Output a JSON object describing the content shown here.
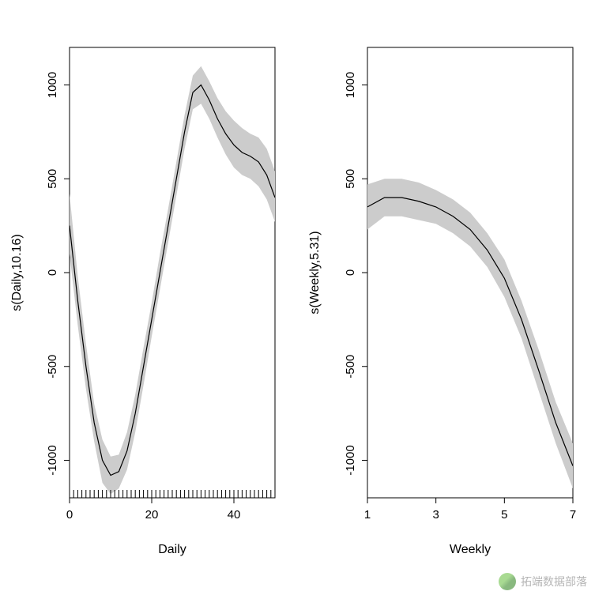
{
  "figure": {
    "background_color": "#ffffff",
    "ci_color": "#cccccc",
    "line_color": "#000000",
    "axis_color": "#000000",
    "font_family": "Arial",
    "panels": [
      {
        "id": "daily",
        "xlabel": "Daily",
        "ylabel": "s(Daily,10.16)",
        "xlim": [
          0,
          50
        ],
        "ylim": [
          -1200,
          1200
        ],
        "xticks": [
          0,
          20,
          40
        ],
        "yticks": [
          -1000,
          -500,
          0,
          500,
          1000
        ],
        "rug": [
          0,
          1,
          2,
          3,
          4,
          5,
          6,
          7,
          8,
          9,
          10,
          11,
          12,
          13,
          14,
          15,
          16,
          17,
          18,
          19,
          20,
          21,
          22,
          23,
          24,
          25,
          26,
          27,
          28,
          29,
          30,
          31,
          32,
          33,
          34,
          35,
          36,
          37,
          38,
          39,
          40,
          41,
          42,
          43,
          44,
          45,
          46,
          47,
          48,
          49,
          50
        ],
        "curve_x": [
          0,
          2,
          4,
          6,
          8,
          10,
          12,
          14,
          16,
          18,
          20,
          22,
          24,
          26,
          28,
          30,
          32,
          34,
          36,
          38,
          40,
          42,
          44,
          46,
          48,
          50
        ],
        "curve_y": [
          250,
          -150,
          -500,
          -800,
          -1000,
          -1080,
          -1060,
          -950,
          -750,
          -500,
          -250,
          0,
          250,
          500,
          750,
          960,
          1000,
          920,
          820,
          740,
          680,
          640,
          620,
          590,
          520,
          400
        ],
        "ci_lo": [
          100,
          -280,
          -620,
          -900,
          -1120,
          -1180,
          -1150,
          -1050,
          -850,
          -600,
          -340,
          -90,
          160,
          410,
          660,
          870,
          900,
          820,
          720,
          630,
          560,
          520,
          500,
          460,
          390,
          270
        ],
        "ci_hi": [
          420,
          -20,
          -380,
          -700,
          -890,
          -980,
          -970,
          -850,
          -650,
          -400,
          -160,
          100,
          340,
          590,
          840,
          1050,
          1100,
          1020,
          930,
          860,
          810,
          770,
          740,
          720,
          660,
          540
        ],
        "label_fontsize": 16,
        "tick_fontsize": 15
      },
      {
        "id": "weekly",
        "xlabel": "Weekly",
        "ylabel": "s(Weekly,5.31)",
        "xlim": [
          1,
          7
        ],
        "ylim": [
          -1200,
          1200
        ],
        "xticks": [
          1,
          3,
          5,
          7
        ],
        "yticks": [
          -1000,
          -500,
          0,
          500,
          1000
        ],
        "rug": [],
        "curve_x": [
          1.0,
          1.5,
          2.0,
          2.5,
          3.0,
          3.5,
          4.0,
          4.5,
          5.0,
          5.5,
          6.0,
          6.5,
          7.0
        ],
        "curve_y": [
          350,
          400,
          400,
          380,
          350,
          300,
          230,
          120,
          -30,
          -250,
          -520,
          -800,
          -1030
        ],
        "ci_lo": [
          230,
          300,
          300,
          280,
          260,
          210,
          140,
          30,
          -130,
          -350,
          -630,
          -910,
          -1150
        ],
        "ci_hi": [
          470,
          500,
          500,
          480,
          440,
          390,
          320,
          210,
          70,
          -150,
          -410,
          -690,
          -910
        ],
        "label_fontsize": 16,
        "tick_fontsize": 15
      }
    ]
  },
  "watermark": {
    "text": "拓端数据部落"
  }
}
